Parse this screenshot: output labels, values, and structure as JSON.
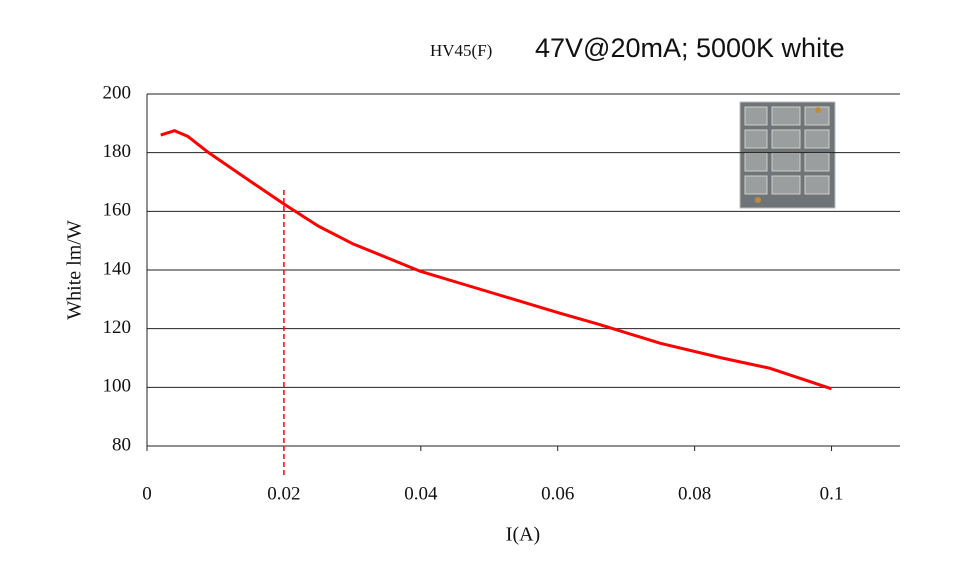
{
  "chart_data": {
    "type": "line",
    "title": "HV45(F)",
    "subtitle": "47V@20mA; 5000K white",
    "x_label": "I(A)",
    "y_label": "White lm/W",
    "x": [
      0.002,
      0.004,
      0.006,
      0.009,
      0.014,
      0.02,
      0.025,
      0.03,
      0.04,
      0.05,
      0.06,
      0.066,
      0.075,
      0.084,
      0.091,
      0.1
    ],
    "series": [
      {
        "color": "#ff0000",
        "values": [
          186,
          187.5,
          185.5,
          180,
          172,
          162.5,
          155,
          149,
          139.5,
          132.5,
          125.5,
          121.5,
          115,
          110,
          106.5,
          99.5
        ]
      }
    ],
    "xlim": [
      0,
      0.11
    ],
    "xticks": [
      0,
      0.02,
      0.04,
      0.06,
      0.08,
      0.1
    ],
    "ylim": [
      80,
      200
    ],
    "yticks": [
      80,
      100,
      120,
      140,
      160,
      180,
      200
    ],
    "grid": true,
    "reference_x": 0.02,
    "reference_color": "#ff0000"
  }
}
